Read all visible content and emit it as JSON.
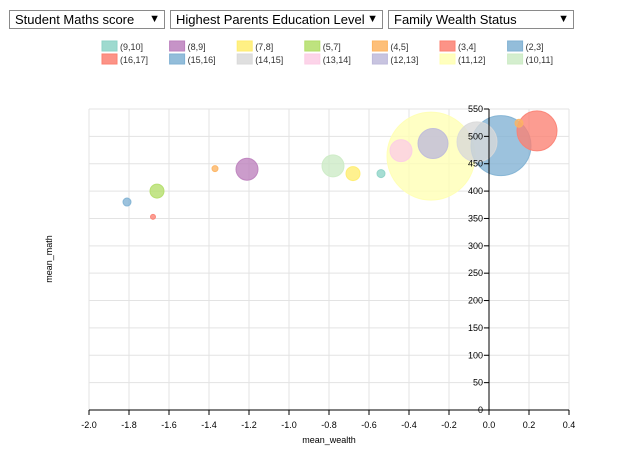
{
  "dropdowns": [
    {
      "label": "Student Maths score"
    },
    {
      "label": "Highest Parents Education Level"
    },
    {
      "label": "Family Wealth Status"
    }
  ],
  "dropdown_arrow": "▼",
  "chart_data": {
    "type": "scatter",
    "xlabel": "mean_wealth",
    "ylabel": "mean_math",
    "xlim": [
      -2.0,
      0.4
    ],
    "ylim": [
      0,
      550
    ],
    "x_ticks": [
      -2.0,
      -1.8,
      -1.6,
      -1.4,
      -1.2,
      -1.0,
      -0.8,
      -0.6,
      -0.4,
      -0.2,
      0.0,
      0.2,
      0.4
    ],
    "y_ticks": [
      0,
      50,
      100,
      150,
      200,
      250,
      300,
      350,
      400,
      450,
      500,
      550
    ],
    "grid": true,
    "legend_position": "top",
    "legend": [
      {
        "label": "(9,10]",
        "color": "#8dd3c7"
      },
      {
        "label": "(8,9]",
        "color": "#bc80bd"
      },
      {
        "label": "(7,8]",
        "color": "#ffed6f"
      },
      {
        "label": "(5,7]",
        "color": "#b3de69"
      },
      {
        "label": "(4,5]",
        "color": "#fdb462"
      },
      {
        "label": "(3,4]",
        "color": "#fb8072"
      },
      {
        "label": "(2,3]",
        "color": "#80b1d3"
      },
      {
        "label": "(16,17]",
        "color": "#fb8072"
      },
      {
        "label": "(15,16]",
        "color": "#80b1d3"
      },
      {
        "label": "(14,15]",
        "color": "#d9d9d9"
      },
      {
        "label": "(13,14]",
        "color": "#fccde5"
      },
      {
        "label": "(12,13]",
        "color": "#bebada"
      },
      {
        "label": "(11,12]",
        "color": "#ffffb3"
      },
      {
        "label": "(10,11]",
        "color": "#ccebc5"
      }
    ],
    "points": [
      {
        "group": "(11,12]",
        "x": -0.29,
        "y": 464,
        "size": 44,
        "color": "#ffffb3"
      },
      {
        "group": "(15,16]",
        "x": 0.06,
        "y": 483,
        "size": 30,
        "color": "#80b1d3"
      },
      {
        "group": "(16,17]",
        "x": 0.24,
        "y": 510,
        "size": 20,
        "color": "#fb8072"
      },
      {
        "group": "(14,15]",
        "x": -0.06,
        "y": 490,
        "size": 20,
        "color": "#d9d9d9"
      },
      {
        "group": "(12,13]",
        "x": -0.28,
        "y": 487,
        "size": 15,
        "color": "#bebada"
      },
      {
        "group": "(13,14]",
        "x": -0.44,
        "y": 474,
        "size": 11,
        "color": "#fccde5"
      },
      {
        "group": "(10,11]",
        "x": -0.78,
        "y": 446,
        "size": 11,
        "color": "#ccebc5"
      },
      {
        "group": "(8,9]",
        "x": -1.21,
        "y": 440,
        "size": 11,
        "color": "#bc80bd"
      },
      {
        "group": "(7,8]",
        "x": -0.68,
        "y": 432,
        "size": 7,
        "color": "#ffed6f"
      },
      {
        "group": "(5,7]",
        "x": -1.66,
        "y": 400,
        "size": 7,
        "color": "#b3de69"
      },
      {
        "group": "(9,10]",
        "x": -0.54,
        "y": 432,
        "size": 4,
        "color": "#8dd3c7"
      },
      {
        "group": "(2,3]",
        "x": -1.81,
        "y": 380,
        "size": 4,
        "color": "#80b1d3"
      },
      {
        "group": "(4,5]",
        "x": -1.37,
        "y": 441,
        "size": 3,
        "color": "#fdb462"
      },
      {
        "group": "(4,5]",
        "x": 0.15,
        "y": 524,
        "size": 4,
        "color": "#fdb462"
      },
      {
        "group": "(3,4]",
        "x": -1.68,
        "y": 353,
        "size": 2.5,
        "color": "#fb8072"
      }
    ]
  }
}
